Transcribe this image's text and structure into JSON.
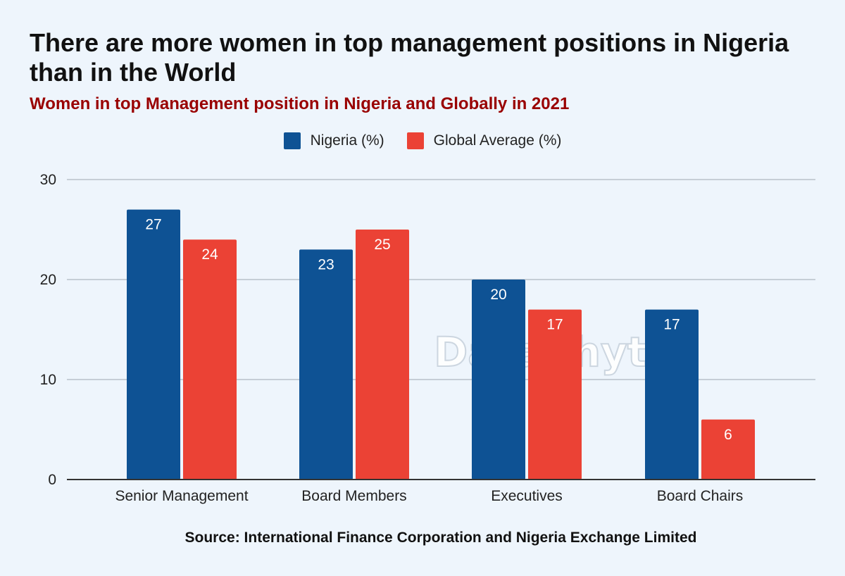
{
  "title": "There are more women in top management positions in Nigeria than in the World",
  "subtitle": "Women in top Management position in Nigeria and Globally in 2021",
  "source": "Source: International Finance Corporation and Nigeria Exchange Limited",
  "watermark": "Dataphyte",
  "colors": {
    "nigeria": "#0e5294",
    "global": "#eb4235",
    "grid": "#b9c1ca",
    "axis": "#333333"
  },
  "chart_data": {
    "type": "bar",
    "categories": [
      "Senior Management",
      "Board Members",
      "Executives",
      "Board Chairs"
    ],
    "series": [
      {
        "name": "Nigeria (%)",
        "values": [
          27,
          23,
          20,
          17
        ]
      },
      {
        "name": "Global Average (%)",
        "values": [
          24,
          25,
          17,
          6
        ]
      }
    ],
    "ylim": [
      0,
      30
    ],
    "yticks": [
      0,
      10,
      20,
      30
    ],
    "grid": true,
    "legend": "top-center",
    "data_labels": true
  }
}
